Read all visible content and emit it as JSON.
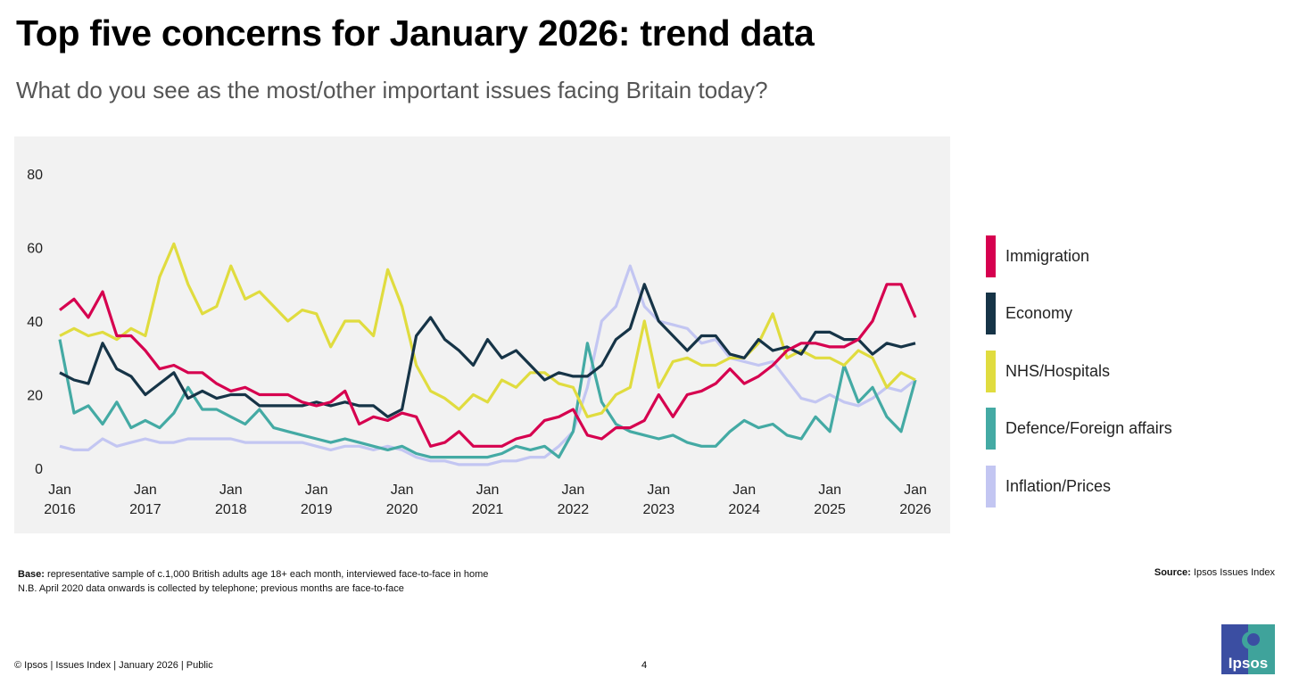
{
  "header": {
    "title": "Top five concerns for January 2026: trend data",
    "subtitle": "What do you see as the most/other important issues facing Britain today?"
  },
  "chart_data": {
    "type": "line",
    "title": "Top five concerns for January 2026: trend data",
    "xlabel": "",
    "ylabel": "",
    "ylim": [
      0,
      80
    ],
    "xlim": [
      2016,
      2026
    ],
    "yticks": [
      "0",
      "20",
      "40",
      "60",
      "80"
    ],
    "xticks": [
      {
        "month": "Jan",
        "year": "2016"
      },
      {
        "month": "Jan",
        "year": "2017"
      },
      {
        "month": "Jan",
        "year": "2018"
      },
      {
        "month": "Jan",
        "year": "2019"
      },
      {
        "month": "Jan",
        "year": "2020"
      },
      {
        "month": "Jan",
        "year": "2021"
      },
      {
        "month": "Jan",
        "year": "2022"
      },
      {
        "month": "Jan",
        "year": "2023"
      },
      {
        "month": "Jan",
        "year": "2024"
      },
      {
        "month": "Jan",
        "year": "2025"
      },
      {
        "month": "Jan",
        "year": "2026"
      }
    ],
    "x_step_months": 2,
    "legend_position": "right",
    "grid": false,
    "series": [
      {
        "name": "Immigration",
        "color": "#d6004f",
        "values": [
          43,
          46,
          41,
          48,
          36,
          36,
          32,
          27,
          28,
          26,
          26,
          23,
          21,
          22,
          20,
          20,
          20,
          18,
          17,
          18,
          21,
          12,
          14,
          13,
          15,
          14,
          6,
          7,
          10,
          6,
          6,
          6,
          8,
          9,
          13,
          14,
          16,
          9,
          8,
          11,
          11,
          13,
          20,
          14,
          20,
          21,
          23,
          27,
          23,
          25,
          28,
          32,
          34,
          34,
          33,
          33,
          35,
          40,
          50,
          50,
          41
        ]
      },
      {
        "name": "Economy",
        "color": "#163447",
        "values": [
          26,
          24,
          23,
          34,
          27,
          25,
          20,
          23,
          26,
          19,
          21,
          19,
          20,
          20,
          17,
          17,
          17,
          17,
          18,
          17,
          18,
          17,
          17,
          14,
          16,
          36,
          41,
          35,
          32,
          28,
          35,
          30,
          32,
          28,
          24,
          26,
          25,
          25,
          28,
          35,
          38,
          50,
          40,
          36,
          32,
          36,
          36,
          31,
          30,
          35,
          32,
          33,
          31,
          37,
          37,
          35,
          35,
          31,
          34,
          33,
          34
        ]
      },
      {
        "name": "NHS/Hospitals",
        "color": "#e0dc3f",
        "values": [
          36,
          38,
          36,
          37,
          35,
          38,
          36,
          52,
          61,
          50,
          42,
          44,
          55,
          46,
          48,
          44,
          40,
          43,
          42,
          33,
          40,
          40,
          36,
          54,
          44,
          28,
          21,
          19,
          16,
          20,
          18,
          24,
          22,
          26,
          26,
          23,
          22,
          14,
          15,
          20,
          22,
          40,
          22,
          29,
          30,
          28,
          28,
          30,
          30,
          34,
          42,
          30,
          32,
          30,
          30,
          28,
          32,
          30,
          22,
          26,
          24
        ]
      },
      {
        "name": "Defence/Foreign affairs",
        "color": "#44aaa4",
        "values": [
          35,
          15,
          17,
          12,
          18,
          11,
          13,
          11,
          15,
          22,
          16,
          16,
          14,
          12,
          16,
          11,
          10,
          9,
          8,
          7,
          8,
          7,
          6,
          5,
          6,
          4,
          3,
          3,
          3,
          3,
          3,
          4,
          6,
          5,
          6,
          3,
          10,
          34,
          18,
          12,
          10,
          9,
          8,
          9,
          7,
          6,
          6,
          10,
          13,
          11,
          12,
          9,
          8,
          14,
          10,
          28,
          18,
          22,
          14,
          10,
          24
        ]
      },
      {
        "name": "Inflation/Prices",
        "color": "#c3c6f2",
        "values": [
          6,
          5,
          5,
          8,
          6,
          7,
          8,
          7,
          7,
          8,
          8,
          8,
          8,
          7,
          7,
          7,
          7,
          7,
          6,
          5,
          6,
          6,
          5,
          6,
          5,
          3,
          2,
          2,
          1,
          1,
          1,
          2,
          2,
          3,
          3,
          6,
          10,
          22,
          40,
          44,
          55,
          44,
          40,
          39,
          38,
          34,
          35,
          30,
          29,
          28,
          29,
          24,
          19,
          18,
          20,
          18,
          17,
          19,
          22,
          21,
          24
        ]
      }
    ]
  },
  "notes": {
    "base_label": "Base:",
    "base_text": "representative sample of c.1,000 British adults age 18+ each month, interviewed face-to-face in home",
    "nb_text": "N.B. April 2020 data onwards is collected by telephone; previous months are face-to-face",
    "source_label": "Source:",
    "source_text": "Ipsos Issues Index"
  },
  "footer": {
    "text": "© Ipsos | Issues Index | January 2026 | Public",
    "page": "4",
    "logo_text": "Ipsos"
  }
}
